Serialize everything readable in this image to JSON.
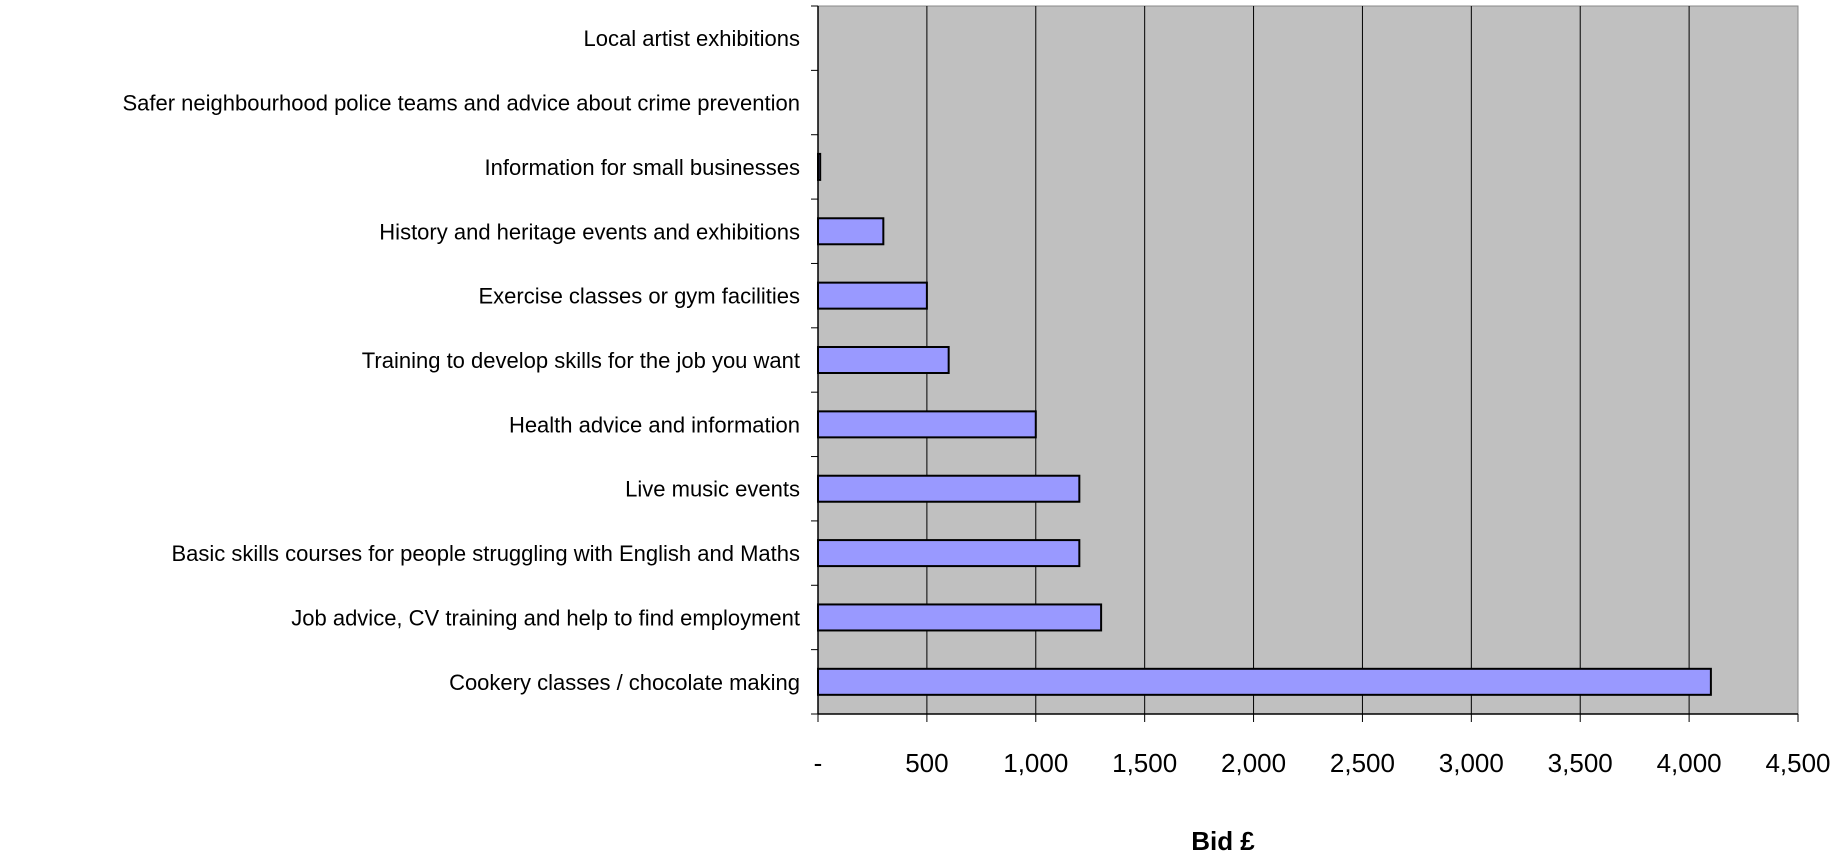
{
  "chart_data": {
    "type": "bar",
    "orientation": "horizontal",
    "title": "",
    "xlabel": "Bid £",
    "ylabel": "",
    "xlim": [
      0,
      4500
    ],
    "x_ticks": [
      0,
      500,
      1000,
      1500,
      2000,
      2500,
      3000,
      3500,
      4000,
      4500
    ],
    "x_tick_labels": [
      "-",
      "500",
      "1,000",
      "1,500",
      "2,000",
      "2,500",
      "3,000",
      "3,500",
      "4,000",
      "4,500"
    ],
    "grid": "vertical",
    "legend": "none",
    "categories": [
      "Local artist exhibitions",
      "Safer neighbourhood police teams and advice about crime prevention",
      "Information for small businesses",
      "History and heritage events and exhibitions",
      "Exercise classes or gym facilities",
      "Training to develop skills for the job you want",
      "Health advice and information",
      "Live music events",
      "Basic skills courses for people struggling with English and Maths",
      "Job advice, CV training and help to find employment",
      "Cookery classes / chocolate making"
    ],
    "values": [
      0,
      0,
      10,
      300,
      500,
      600,
      1000,
      1200,
      1200,
      1300,
      4100
    ],
    "colors": {
      "bar_fill": "#9999ff",
      "bar_stroke": "#000000",
      "plot_background": "#c0c0c0",
      "gridline": "#000000"
    }
  }
}
